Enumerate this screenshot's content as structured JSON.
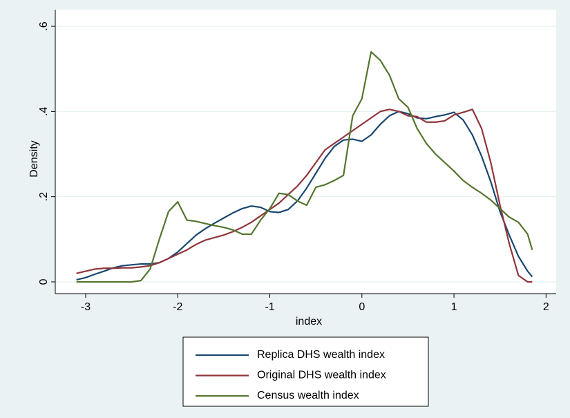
{
  "chart_data": {
    "type": "line",
    "xlabel": "index",
    "ylabel": "Density",
    "x": [
      -3.1,
      -3.0,
      -2.9,
      -2.8,
      -2.7,
      -2.6,
      -2.5,
      -2.4,
      -2.3,
      -2.2,
      -2.1,
      -2.0,
      -1.9,
      -1.8,
      -1.7,
      -1.6,
      -1.5,
      -1.4,
      -1.3,
      -1.2,
      -1.1,
      -1.0,
      -0.9,
      -0.8,
      -0.7,
      -0.6,
      -0.5,
      -0.4,
      -0.3,
      -0.2,
      -0.1,
      0,
      0.1,
      0.2,
      0.3,
      0.4,
      0.5,
      0.6,
      0.7,
      0.8,
      0.9,
      1.0,
      1.1,
      1.2,
      1.3,
      1.4,
      1.5,
      1.6,
      1.7,
      1.8,
      1.85
    ],
    "series": [
      {
        "name": "Replica DHS wealth index",
        "color": "#1a476f",
        "values": [
          0.005,
          0.01,
          0.018,
          0.025,
          0.033,
          0.038,
          0.04,
          0.042,
          0.042,
          0.045,
          0.055,
          0.07,
          0.09,
          0.11,
          0.125,
          0.138,
          0.15,
          0.162,
          0.172,
          0.178,
          0.175,
          0.165,
          0.163,
          0.17,
          0.19,
          0.22,
          0.255,
          0.29,
          0.318,
          0.333,
          0.335,
          0.33,
          0.345,
          0.37,
          0.39,
          0.4,
          0.395,
          0.385,
          0.383,
          0.388,
          0.392,
          0.398,
          0.38,
          0.345,
          0.295,
          0.235,
          0.165,
          0.11,
          0.06,
          0.025,
          0.012
        ]
      },
      {
        "name": "Original DHS wealth index",
        "color": "#90353b",
        "values": [
          0.02,
          0.025,
          0.03,
          0.032,
          0.032,
          0.033,
          0.033,
          0.035,
          0.038,
          0.045,
          0.055,
          0.065,
          0.075,
          0.088,
          0.098,
          0.104,
          0.11,
          0.118,
          0.128,
          0.14,
          0.155,
          0.17,
          0.185,
          0.205,
          0.225,
          0.25,
          0.28,
          0.31,
          0.325,
          0.34,
          0.355,
          0.37,
          0.385,
          0.4,
          0.405,
          0.4,
          0.39,
          0.388,
          0.375,
          0.375,
          0.378,
          0.392,
          0.398,
          0.405,
          0.36,
          0.28,
          0.18,
          0.09,
          0.015,
          0,
          0
        ]
      },
      {
        "name": "Census wealth index",
        "color": "#55752f",
        "values": [
          0,
          0,
          0,
          0,
          0,
          0,
          0,
          0.003,
          0.03,
          0.1,
          0.165,
          0.188,
          0.145,
          0.142,
          0.137,
          0.132,
          0.128,
          0.122,
          0.112,
          0.112,
          0.145,
          0.172,
          0.208,
          0.205,
          0.19,
          0.18,
          0.222,
          0.228,
          0.238,
          0.25,
          0.39,
          0.43,
          0.54,
          0.52,
          0.485,
          0.43,
          0.41,
          0.36,
          0.325,
          0.3,
          0.28,
          0.26,
          0.238,
          0.222,
          0.208,
          0.192,
          0.172,
          0.152,
          0.14,
          0.112,
          0.075
        ]
      }
    ],
    "xlim": [
      -3.33,
      2.11
    ],
    "xticks": [
      -3,
      -2,
      -1,
      0,
      1,
      2
    ],
    "ylim": [
      -0.0276,
      0.639
    ],
    "yticks": [
      0,
      {
        "value": 0.2,
        "label": ".2"
      },
      {
        "value": 0.4,
        "label": ".4"
      },
      {
        "value": 0.6,
        "label": ".6"
      }
    ],
    "grid": true
  }
}
